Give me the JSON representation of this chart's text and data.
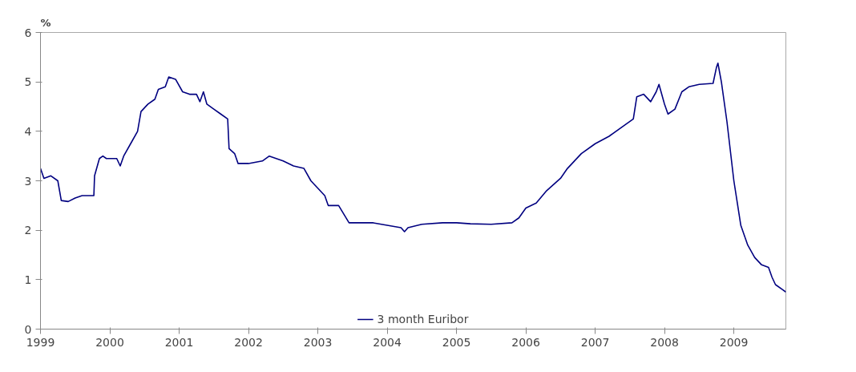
{
  "chart_data": {
    "type": "line",
    "ylabel": "%",
    "xlim": [
      1999,
      2009.75
    ],
    "xticks": [
      1999,
      2000,
      2001,
      2002,
      2003,
      2004,
      2005,
      2006,
      2007,
      2008,
      2009
    ],
    "ylim": [
      0,
      6
    ],
    "yticks": [
      0,
      1,
      2,
      3,
      4,
      5,
      6
    ],
    "grid": false,
    "legend": "bottom",
    "series": [
      {
        "name": "3 month Euribor",
        "color": "#000080",
        "x": [
          1999.0,
          1999.05,
          1999.15,
          1999.25,
          1999.3,
          1999.4,
          1999.5,
          1999.6,
          1999.77,
          1999.78,
          1999.85,
          1999.9,
          1999.95,
          2000.1,
          2000.15,
          2000.2,
          2000.3,
          2000.4,
          2000.45,
          2000.55,
          2000.65,
          2000.7,
          2000.8,
          2000.85,
          2000.95,
          2001.05,
          2001.15,
          2001.25,
          2001.3,
          2001.35,
          2001.4,
          2001.5,
          2001.6,
          2001.7,
          2001.72,
          2001.8,
          2001.85,
          2002.0,
          2002.2,
          2002.3,
          2002.5,
          2002.65,
          2002.8,
          2002.9,
          2003.0,
          2003.1,
          2003.15,
          2003.3,
          2003.45,
          2003.6,
          2003.8,
          2004.0,
          2004.2,
          2004.25,
          2004.3,
          2004.5,
          2004.8,
          2005.0,
          2005.2,
          2005.5,
          2005.8,
          2005.9,
          2006.0,
          2006.15,
          2006.3,
          2006.5,
          2006.6,
          2006.8,
          2007.0,
          2007.2,
          2007.4,
          2007.55,
          2007.6,
          2007.7,
          2007.8,
          2007.88,
          2007.92,
          2008.0,
          2008.05,
          2008.15,
          2008.25,
          2008.35,
          2008.5,
          2008.7,
          2008.75,
          2008.77,
          2008.82,
          2008.9,
          2009.0,
          2009.1,
          2009.2,
          2009.3,
          2009.4,
          2009.5,
          2009.55,
          2009.6,
          2009.7,
          2009.75
        ],
        "values": [
          3.25,
          3.05,
          3.1,
          3.0,
          2.6,
          2.58,
          2.65,
          2.7,
          2.7,
          3.1,
          3.45,
          3.5,
          3.45,
          3.45,
          3.3,
          3.5,
          3.75,
          4.0,
          4.4,
          4.55,
          4.65,
          4.85,
          4.9,
          5.1,
          5.05,
          4.8,
          4.75,
          4.75,
          4.6,
          4.8,
          4.55,
          4.45,
          4.35,
          4.25,
          3.65,
          3.55,
          3.35,
          3.35,
          3.4,
          3.5,
          3.4,
          3.3,
          3.25,
          3.0,
          2.85,
          2.7,
          2.5,
          2.5,
          2.15,
          2.15,
          2.15,
          2.1,
          2.05,
          1.97,
          2.05,
          2.12,
          2.15,
          2.15,
          2.13,
          2.12,
          2.15,
          2.25,
          2.45,
          2.55,
          2.8,
          3.05,
          3.25,
          3.55,
          3.75,
          3.9,
          4.1,
          4.25,
          4.7,
          4.75,
          4.6,
          4.8,
          4.95,
          4.55,
          4.35,
          4.45,
          4.8,
          4.9,
          4.95,
          4.97,
          5.3,
          5.38,
          5.0,
          4.2,
          3.0,
          2.1,
          1.7,
          1.45,
          1.3,
          1.25,
          1.05,
          0.9,
          0.8,
          0.75
        ]
      }
    ]
  }
}
